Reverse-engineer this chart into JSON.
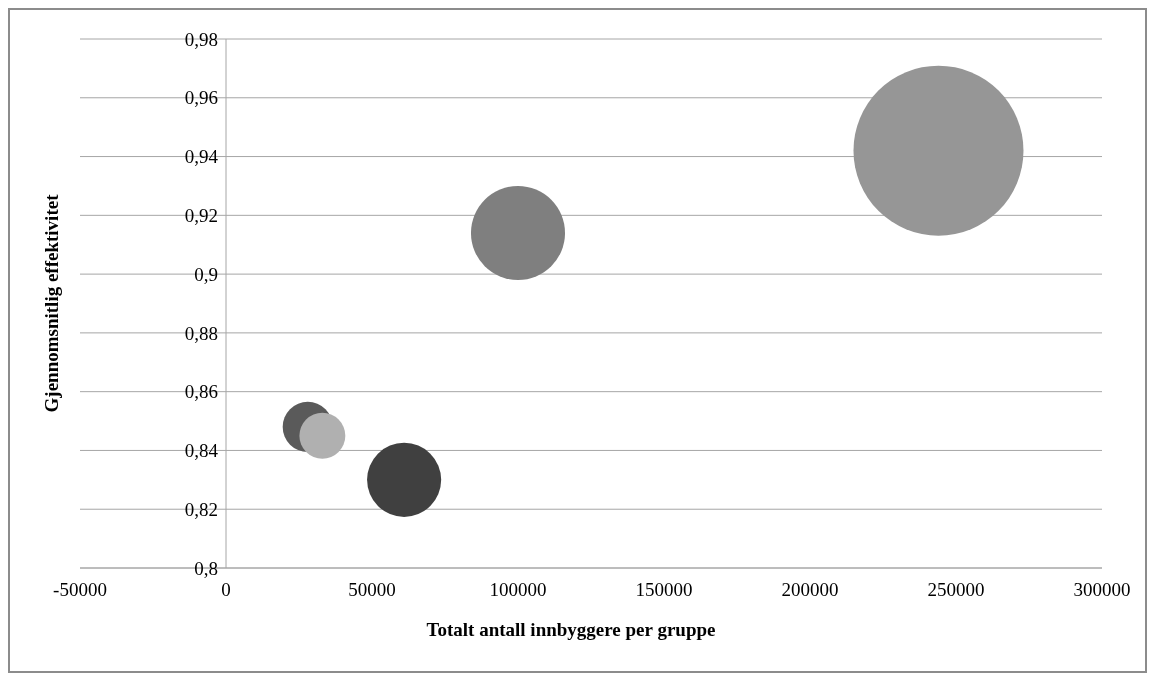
{
  "chart_data": {
    "type": "bubble",
    "xlabel": "Totalt antall innbyggere per gruppe",
    "ylabel": "Gjennomsnitlig effektivitet",
    "x": [
      28000,
      33000,
      61000,
      100000,
      244000
    ],
    "values": [
      0.848,
      0.845,
      0.83,
      0.914,
      0.942
    ],
    "sizes": [
      0.087,
      0.073,
      0.19,
      0.306,
      1
    ],
    "colors": [
      "#5a5a5a",
      "#b0b0b0",
      "#404040",
      "#7f7f7f",
      "#969696"
    ],
    "xlim": [
      -50000,
      300000
    ],
    "xticks": [
      -50000,
      0,
      50000,
      100000,
      150000,
      200000,
      250000,
      300000
    ],
    "ylim": [
      0.8,
      0.98
    ],
    "yticks": [
      {
        "value": 0.8,
        "label": "0,8"
      },
      {
        "value": 0.82,
        "label": "0,82"
      },
      {
        "value": 0.84,
        "label": "0,84"
      },
      {
        "value": 0.86,
        "label": "0,86"
      },
      {
        "value": 0.88,
        "label": "0,88"
      },
      {
        "value": 0.9,
        "label": "0,9"
      },
      {
        "value": 0.92,
        "label": "0,92"
      },
      {
        "value": 0.94,
        "label": "0,94"
      },
      {
        "value": 0.96,
        "label": "0,96"
      },
      {
        "value": 0.98,
        "label": "0,98"
      }
    ],
    "grid": "y"
  }
}
